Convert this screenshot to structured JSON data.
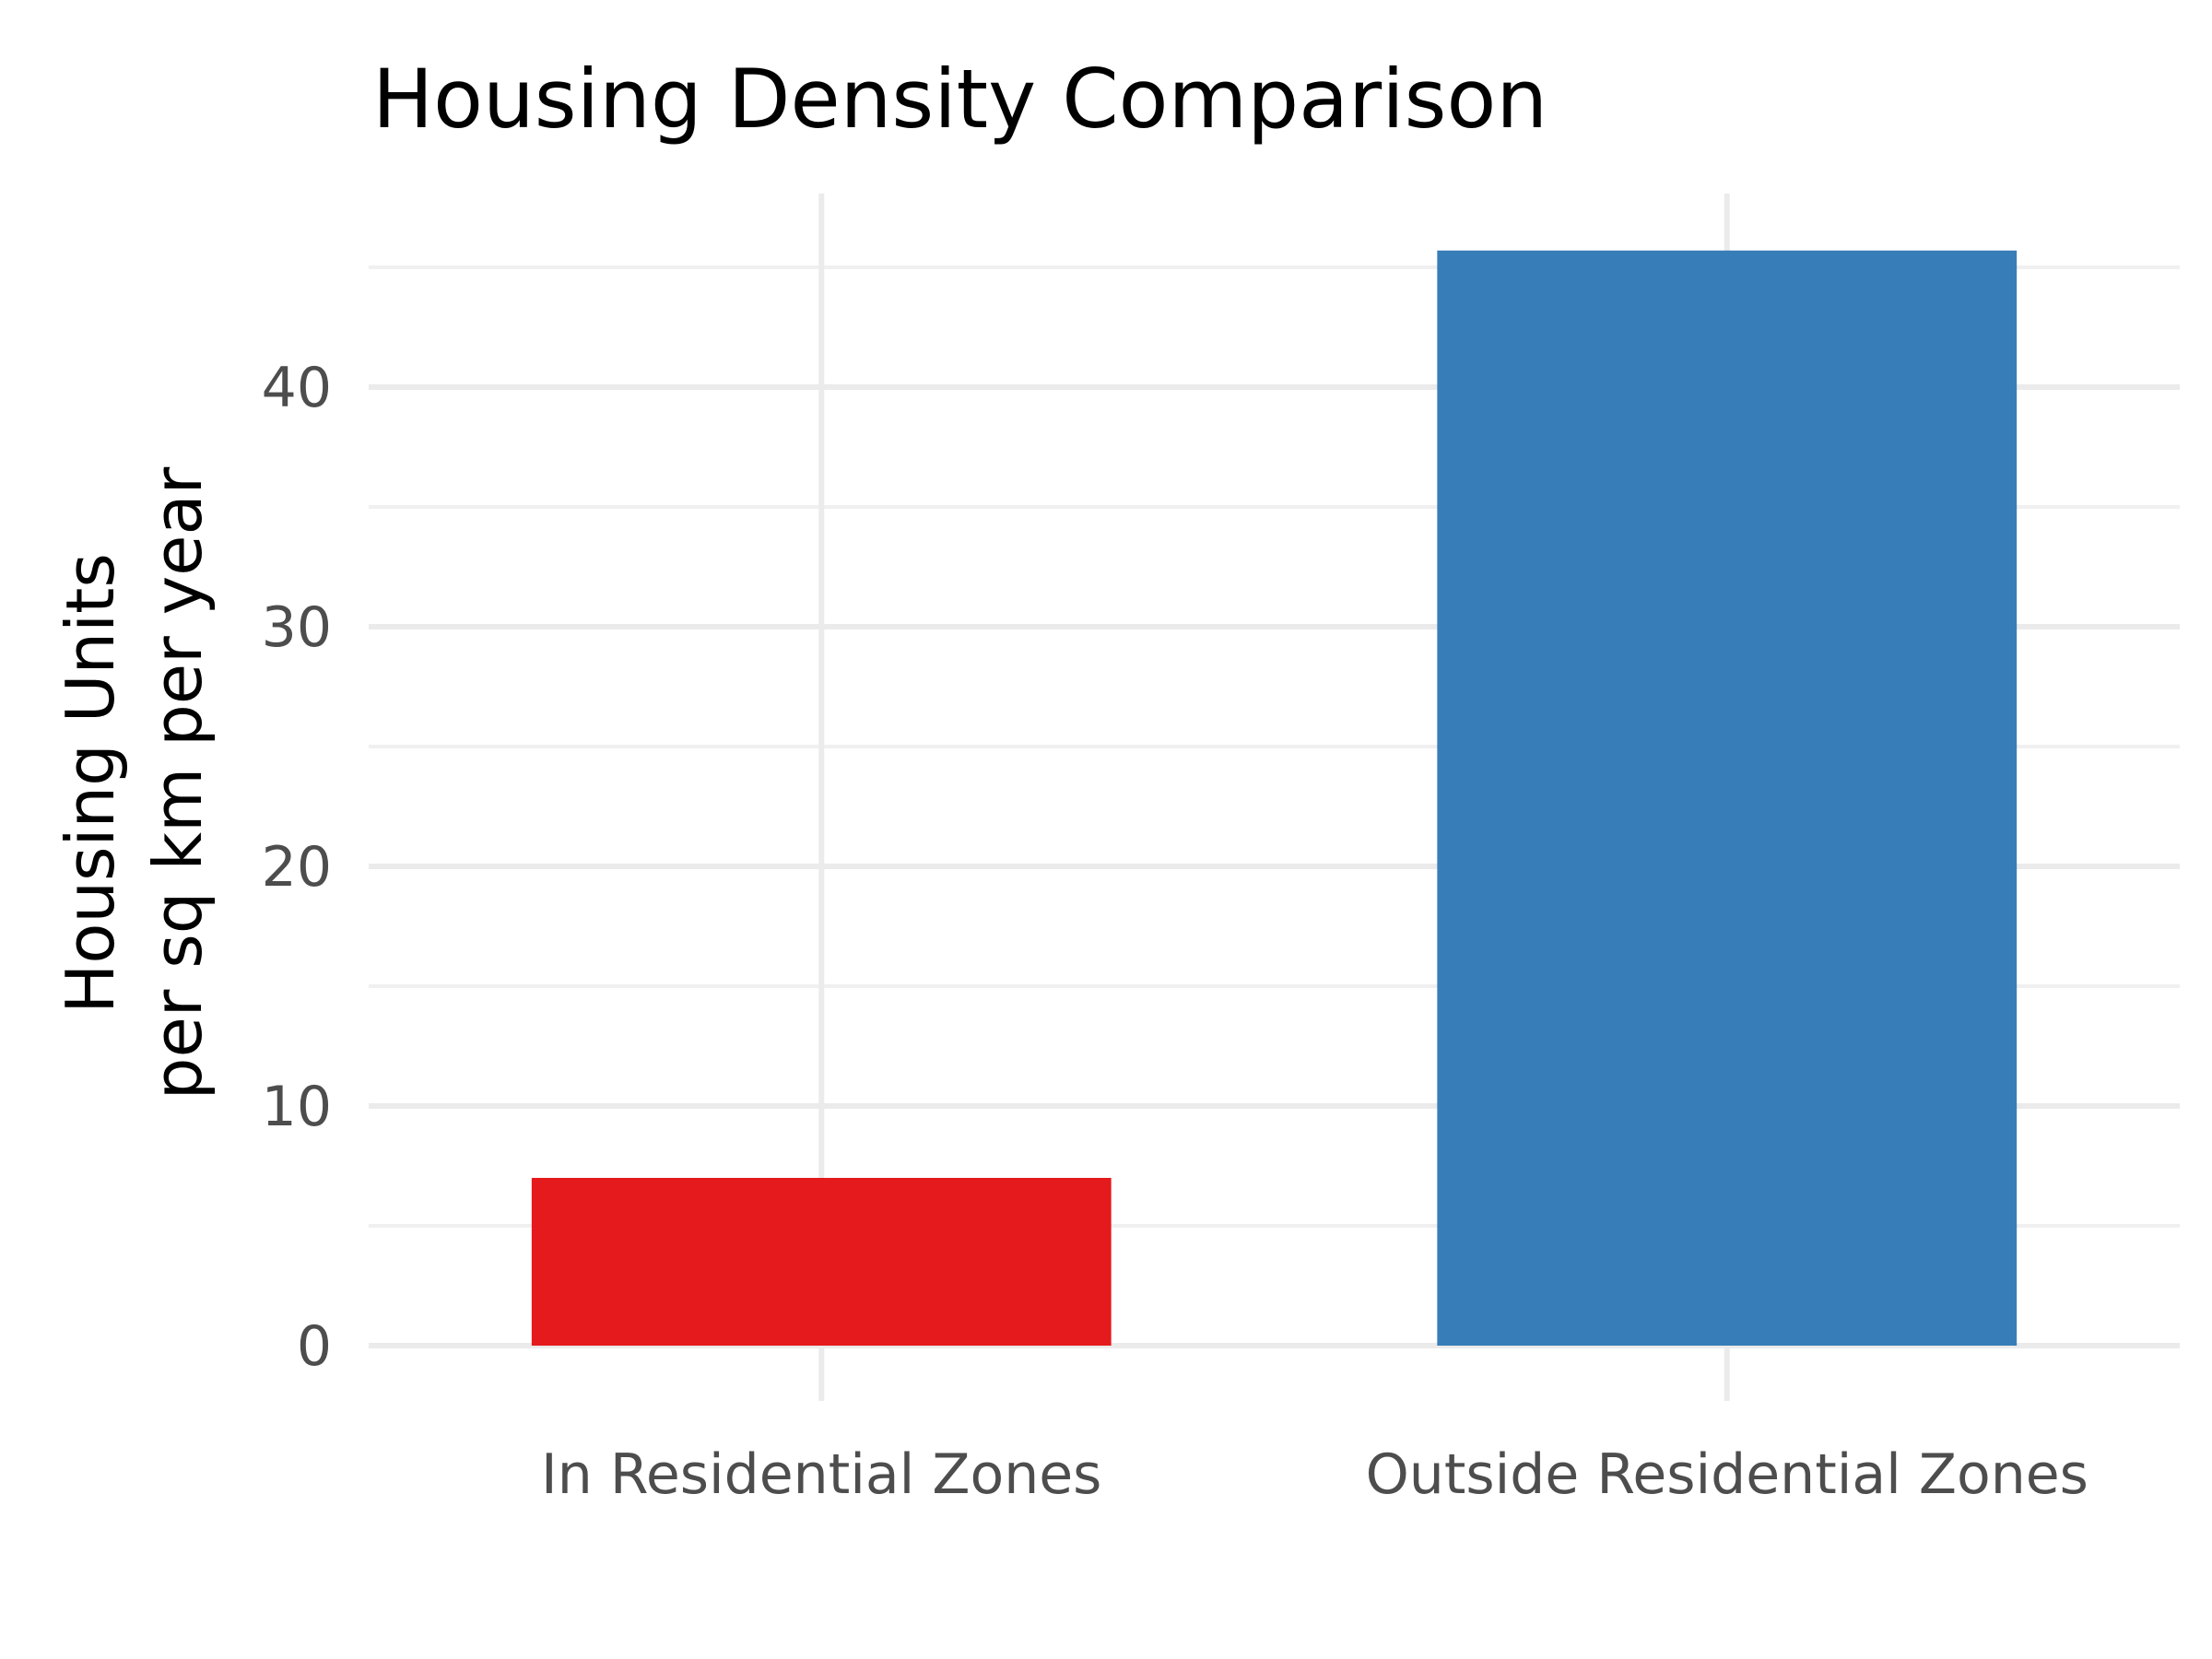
{
  "chart_data": {
    "type": "bar",
    "title": "Housing Density Comparison",
    "ylabel_lines": [
      "Housing Units",
      "per sq km per year"
    ],
    "xlabel": "",
    "categories": [
      "In Residential Zones",
      "Outside Residential Zones"
    ],
    "values": [
      7.0,
      45.7
    ],
    "colors": [
      "#e41a1c",
      "#377eb8"
    ],
    "ylim": [
      0,
      47
    ],
    "yticks": [
      0,
      10,
      20,
      30,
      40
    ],
    "grid": true,
    "legend": "none"
  }
}
